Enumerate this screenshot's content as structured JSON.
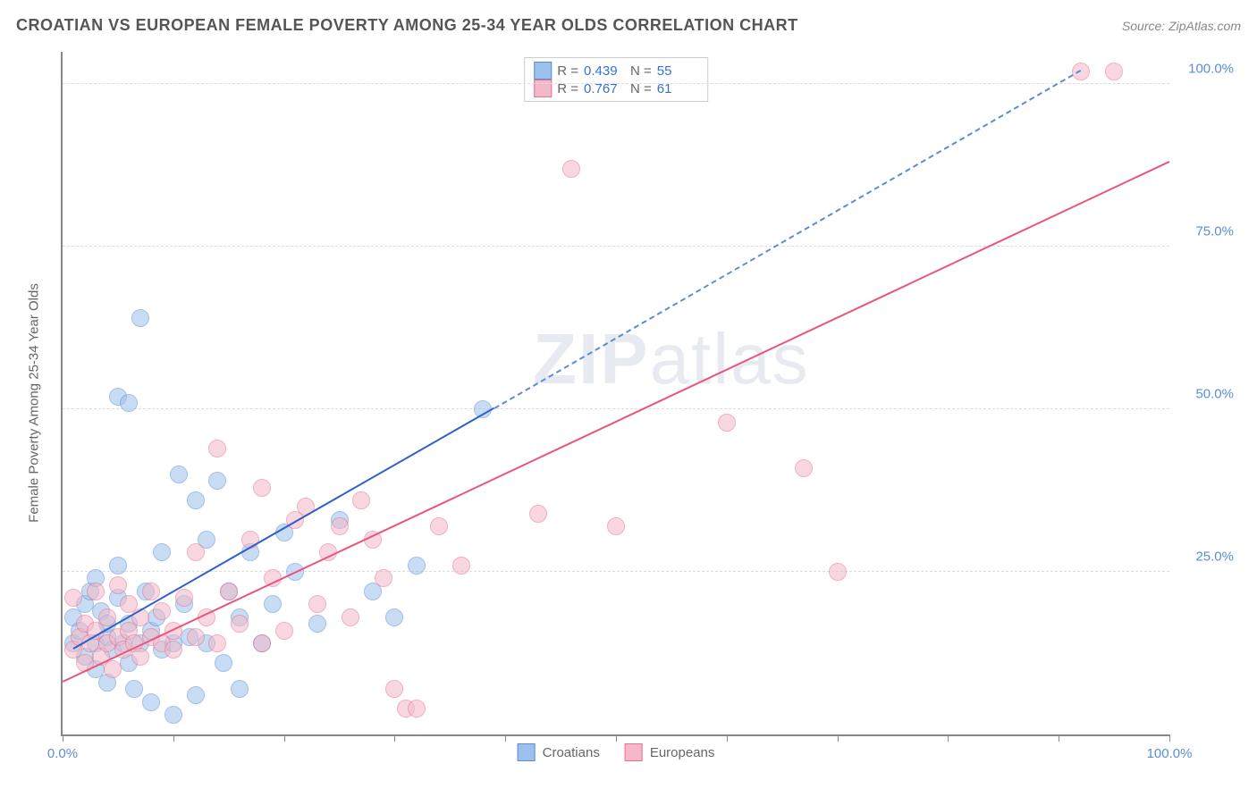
{
  "title": "CROATIAN VS EUROPEAN FEMALE POVERTY AMONG 25-34 YEAR OLDS CORRELATION CHART",
  "source": "Source: ZipAtlas.com",
  "watermark_a": "ZIP",
  "watermark_b": "atlas",
  "chart": {
    "type": "scatter",
    "ylabel": "Female Poverty Among 25-34 Year Olds",
    "xlim": [
      0,
      100
    ],
    "ylim": [
      0,
      105
    ],
    "x_ticks": [
      0,
      10,
      20,
      30,
      40,
      50,
      60,
      70,
      80,
      90,
      100
    ],
    "x_tick_labels": {
      "0": "0.0%",
      "100": "100.0%"
    },
    "y_ticks": [
      25,
      50,
      75,
      100
    ],
    "y_tick_labels": {
      "25": "25.0%",
      "50": "50.0%",
      "75": "75.0%",
      "100": "100.0%"
    },
    "background_color": "#ffffff",
    "grid_color": "#dddddd",
    "axis_color": "#888888",
    "marker_radius": 9,
    "marker_opacity": 0.55,
    "series": [
      {
        "name": "Croatians",
        "color_fill": "#9cc1ec",
        "color_stroke": "#5b8dd6",
        "R": "0.439",
        "N": "55",
        "trend": {
          "x1": 1,
          "y1": 13,
          "x2": 39,
          "y2": 50,
          "solid_color": "#2e62c9",
          "dash_to": {
            "x": 92,
            "y": 102
          }
        },
        "points": [
          [
            1,
            14
          ],
          [
            1,
            18
          ],
          [
            1.5,
            16
          ],
          [
            2,
            12
          ],
          [
            2,
            20
          ],
          [
            2.5,
            22
          ],
          [
            3,
            14
          ],
          [
            3,
            24
          ],
          [
            3,
            10
          ],
          [
            3.5,
            19
          ],
          [
            4,
            15
          ],
          [
            4,
            17
          ],
          [
            4,
            8
          ],
          [
            4.5,
            13
          ],
          [
            5,
            21
          ],
          [
            5,
            52
          ],
          [
            5,
            26
          ],
          [
            5.5,
            14
          ],
          [
            6,
            11
          ],
          [
            6,
            51
          ],
          [
            6,
            17
          ],
          [
            6.5,
            7
          ],
          [
            7,
            64
          ],
          [
            7,
            14
          ],
          [
            7.5,
            22
          ],
          [
            8,
            5
          ],
          [
            8,
            16
          ],
          [
            8.5,
            18
          ],
          [
            9,
            28
          ],
          [
            9,
            13
          ],
          [
            10,
            3
          ],
          [
            10,
            14
          ],
          [
            10.5,
            40
          ],
          [
            11,
            20
          ],
          [
            11.5,
            15
          ],
          [
            12,
            36
          ],
          [
            12,
            6
          ],
          [
            13,
            30
          ],
          [
            13,
            14
          ],
          [
            14,
            39
          ],
          [
            14.5,
            11
          ],
          [
            15,
            22
          ],
          [
            16,
            18
          ],
          [
            16,
            7
          ],
          [
            17,
            28
          ],
          [
            18,
            14
          ],
          [
            19,
            20
          ],
          [
            20,
            31
          ],
          [
            21,
            25
          ],
          [
            23,
            17
          ],
          [
            25,
            33
          ],
          [
            28,
            22
          ],
          [
            30,
            18
          ],
          [
            32,
            26
          ],
          [
            38,
            50
          ]
        ]
      },
      {
        "name": "Europeans",
        "color_fill": "#f4b8c8",
        "color_stroke": "#e8718f",
        "R": "0.767",
        "N": "61",
        "trend": {
          "x1": 0,
          "y1": 8,
          "x2": 100,
          "y2": 88,
          "solid_color": "#e8567e"
        },
        "points": [
          [
            1,
            13
          ],
          [
            1,
            21
          ],
          [
            1.5,
            15
          ],
          [
            2,
            11
          ],
          [
            2,
            17
          ],
          [
            2.5,
            14
          ],
          [
            3,
            16
          ],
          [
            3,
            22
          ],
          [
            3.5,
            12
          ],
          [
            4,
            14
          ],
          [
            4,
            18
          ],
          [
            4.5,
            10
          ],
          [
            5,
            15
          ],
          [
            5,
            23
          ],
          [
            5.5,
            13
          ],
          [
            6,
            16
          ],
          [
            6,
            20
          ],
          [
            6.5,
            14
          ],
          [
            7,
            18
          ],
          [
            7,
            12
          ],
          [
            8,
            15
          ],
          [
            8,
            22
          ],
          [
            9,
            14
          ],
          [
            9,
            19
          ],
          [
            10,
            16
          ],
          [
            10,
            13
          ],
          [
            11,
            21
          ],
          [
            12,
            15
          ],
          [
            12,
            28
          ],
          [
            13,
            18
          ],
          [
            14,
            44
          ],
          [
            14,
            14
          ],
          [
            15,
            22
          ],
          [
            16,
            17
          ],
          [
            17,
            30
          ],
          [
            18,
            14
          ],
          [
            18,
            38
          ],
          [
            19,
            24
          ],
          [
            20,
            16
          ],
          [
            21,
            33
          ],
          [
            22,
            35
          ],
          [
            23,
            20
          ],
          [
            24,
            28
          ],
          [
            25,
            32
          ],
          [
            26,
            18
          ],
          [
            27,
            36
          ],
          [
            28,
            30
          ],
          [
            29,
            24
          ],
          [
            30,
            7
          ],
          [
            31,
            4
          ],
          [
            32,
            4
          ],
          [
            34,
            32
          ],
          [
            36,
            26
          ],
          [
            43,
            34
          ],
          [
            46,
            87
          ],
          [
            50,
            32
          ],
          [
            60,
            48
          ],
          [
            67,
            41
          ],
          [
            70,
            25
          ],
          [
            92,
            102
          ],
          [
            95,
            102
          ]
        ]
      }
    ]
  },
  "legend": {
    "label_croatians": "Croatians",
    "label_europeans": "Europeans"
  }
}
